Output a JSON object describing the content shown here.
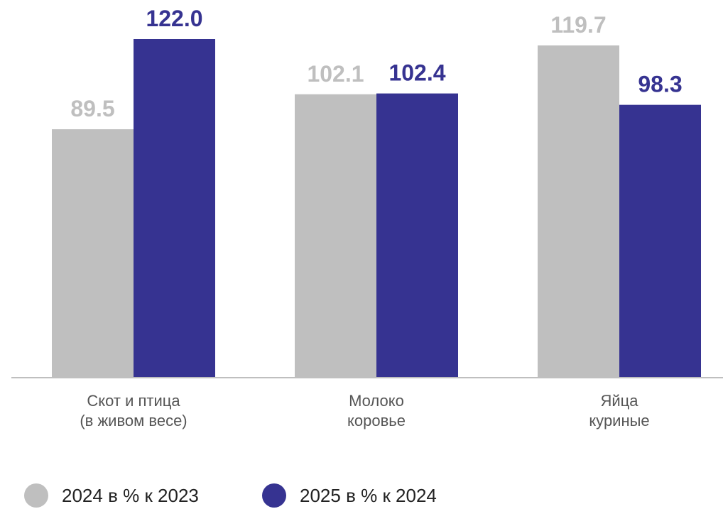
{
  "chart_data": {
    "type": "bar",
    "title": "",
    "xlabel": "",
    "ylabel": "",
    "categories": [
      [
        "Скот и птица",
        "(в живом весе)"
      ],
      [
        "Молоко",
        "коровье"
      ],
      [
        "Яйца",
        "куриные"
      ]
    ],
    "series": [
      {
        "name": "2024 в % к 2023",
        "color": "#bfbfbf",
        "values": [
          89.5,
          102.1,
          119.7
        ]
      },
      {
        "name": "2025 в % к 2024",
        "color": "#363391",
        "values": [
          122.0,
          102.4,
          98.3
        ]
      }
    ],
    "ylim": [
      0,
      130
    ],
    "grid": false,
    "legend": "bottom-left",
    "axis_color": "#bfbfbf"
  }
}
